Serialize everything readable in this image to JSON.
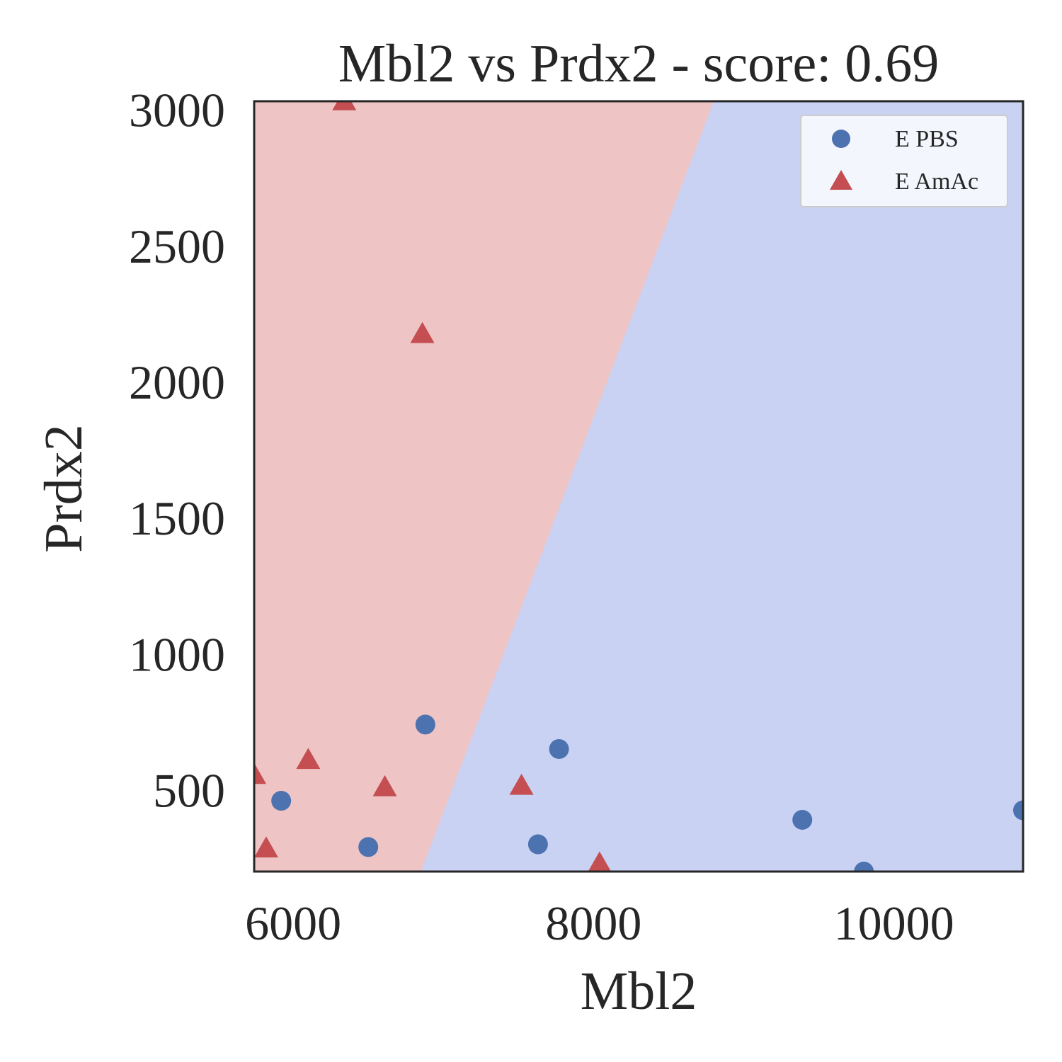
{
  "chart_data": {
    "type": "scatter",
    "title": "Mbl2 vs Prdx2 - score: 0.69",
    "xlabel": "Mbl2",
    "ylabel": "Prdx2",
    "xlim": [
      5740,
      10860
    ],
    "ylim": [
      200,
      3030
    ],
    "xticks": [
      6000,
      8000,
      10000
    ],
    "yticks": [
      500,
      1000,
      1500,
      2000,
      2500,
      3000
    ],
    "grid": false,
    "legend_position": "top-right",
    "decision_boundary": {
      "points": [
        [
          6850,
          200
        ],
        [
          8800,
          3030
        ]
      ],
      "left_region": "E AmAc",
      "right_region": "E PBS"
    },
    "region_colors": {
      "E PBS": "#c9d2f2",
      "E AmAc": "#efc4c4"
    },
    "series": [
      {
        "name": "E PBS",
        "marker": "circle",
        "color": "#4c72b0",
        "points": [
          [
            5920,
            460
          ],
          [
            6500,
            290
          ],
          [
            6880,
            740
          ],
          [
            7630,
            300
          ],
          [
            7770,
            650
          ],
          [
            9390,
            390
          ],
          [
            9800,
            200
          ],
          [
            10860,
            425
          ]
        ]
      },
      {
        "name": "E AmAc",
        "marker": "triangle",
        "color": "#c44e52",
        "points": [
          [
            5740,
            555
          ],
          [
            5820,
            285
          ],
          [
            6100,
            610
          ],
          [
            6340,
            3030
          ],
          [
            6610,
            510
          ],
          [
            6860,
            2175
          ],
          [
            7520,
            515
          ],
          [
            8040,
            230
          ]
        ]
      }
    ]
  }
}
